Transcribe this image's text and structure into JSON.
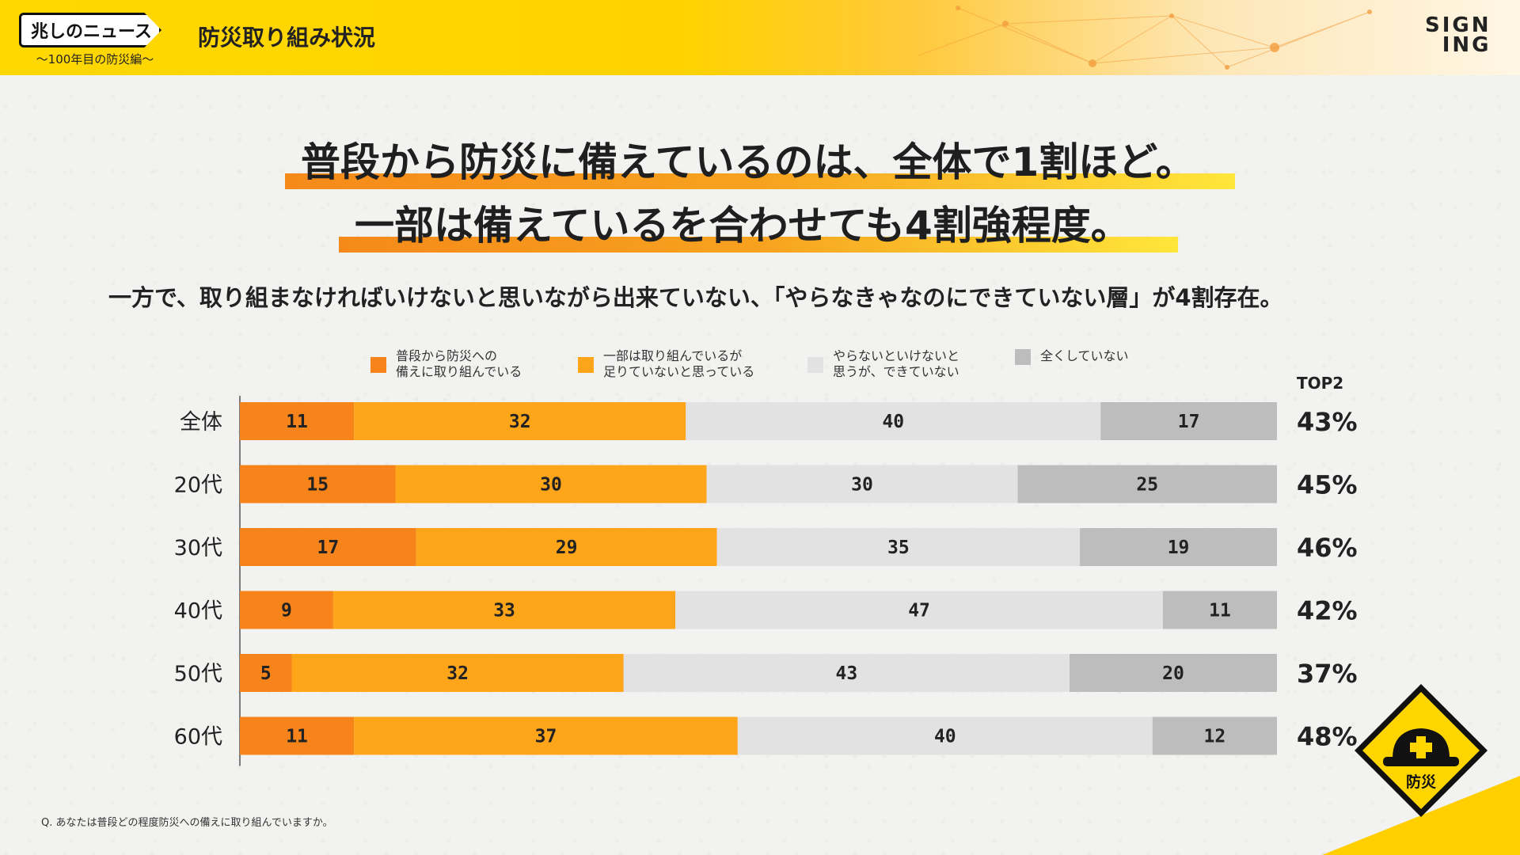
{
  "header": {
    "logo_text": "兆しのニュース",
    "logo_sub": "〜100年目の防災編〜",
    "title": "防災取り組み状況",
    "brand_line1": "SIGN",
    "brand_line2": "ING"
  },
  "headline": {
    "line1": "普段から防災に備えているのは、全体で1割ほど。",
    "line2": "一部は備えているを合わせても4割強程度。"
  },
  "subtext": {
    "before": "一方で、取り組まなければいけないと思いながら出来ていない、",
    "highlight": "「やらなきゃなのにできていない層」",
    "after": "が4割存在。"
  },
  "top2_header": "TOP2",
  "note": "Q. あなたは普段どの程度防災への備えに取り組んでいますか。",
  "badge_label": "防災",
  "colors": {
    "series1": "#f7841a",
    "series2": "#ffa51a",
    "series3": "#e2e2e2",
    "series4": "#bdbdbd"
  },
  "chart_data": {
    "type": "bar",
    "orientation": "horizontal",
    "stacked": true,
    "categories": [
      "全体",
      "20代",
      "30代",
      "40代",
      "50代",
      "60代"
    ],
    "series": [
      {
        "name": "普段から防災への備えに取り組んでいる",
        "legend_lines": [
          "普段から防災への",
          "備えに取り組んでいる"
        ],
        "values": [
          11,
          15,
          17,
          9,
          5,
          11
        ]
      },
      {
        "name": "一部は取り組んでいるが足りていないと思っている",
        "legend_lines": [
          "一部は取り組んでいるが",
          "足りていないと思っている"
        ],
        "values": [
          32,
          30,
          29,
          33,
          32,
          37
        ]
      },
      {
        "name": "やらないといけないと思うが、できていない",
        "legend_lines": [
          "やらないといけないと",
          "思うが、できていない"
        ],
        "values": [
          40,
          30,
          35,
          47,
          43,
          40
        ]
      },
      {
        "name": "全くしていない",
        "legend_lines": [
          "全くしていない"
        ],
        "values": [
          17,
          25,
          19,
          11,
          20,
          12
        ]
      }
    ],
    "top2": [
      "43%",
      "45%",
      "46%",
      "42%",
      "37%",
      "48%"
    ],
    "legend_position": "top"
  }
}
